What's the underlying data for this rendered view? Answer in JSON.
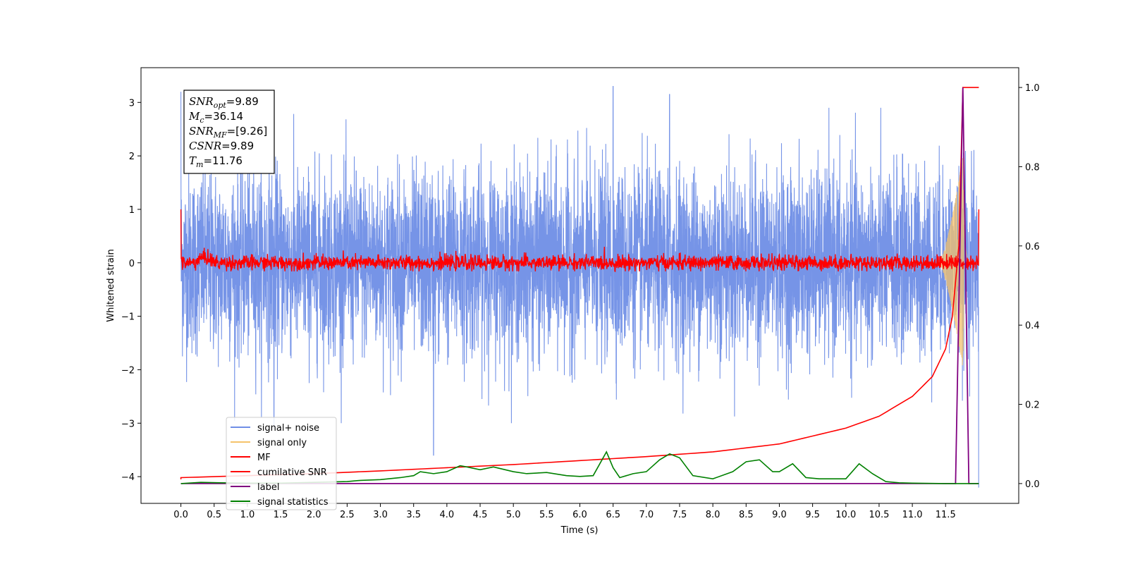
{
  "chart_data": {
    "type": "line",
    "title": "",
    "xlabel": "Time (s)",
    "ylabel": "Whitened strain",
    "xlim": [
      -0.6,
      12.6
    ],
    "ylim": [
      -4.5,
      3.65
    ],
    "y2lim": [
      -0.05,
      1.05
    ],
    "x_ticks": [
      0.0,
      0.5,
      1.0,
      1.5,
      2.0,
      2.5,
      3.0,
      3.5,
      4.0,
      4.5,
      5.0,
      5.5,
      6.0,
      6.5,
      7.0,
      7.5,
      8.0,
      8.5,
      9.0,
      9.5,
      10.0,
      10.5,
      11.0,
      11.5
    ],
    "x_tick_labels": [
      "0.0",
      "0.5",
      "1.0",
      "1.5",
      "2.0",
      "2.5",
      "3.0",
      "3.5",
      "4.0",
      "4.5",
      "5.0",
      "5.5",
      "6.0",
      "6.5",
      "7.0",
      "7.5",
      "8.0",
      "8.5",
      "9.0",
      "9.5",
      "10.0",
      "10.5",
      "11.0",
      "11.5"
    ],
    "y_ticks": [
      3,
      2,
      1,
      0,
      -1,
      -2,
      -3,
      -4
    ],
    "y_tick_labels": [
      "3",
      "2",
      "1",
      "0",
      "−1",
      "−2",
      "−3",
      "−4"
    ],
    "y2_ticks": [
      1.0,
      0.8,
      0.6,
      0.4,
      0.2,
      0.0
    ],
    "y2_tick_labels": [
      "1.0",
      "0.8",
      "0.6",
      "0.4",
      "0.2",
      "0.0"
    ],
    "grid": false,
    "legend_position": "bottom-left",
    "legend": [
      {
        "label": "signal+ noise",
        "color": "#6f8ee6"
      },
      {
        "label": "signal only",
        "color": "#f5c36b"
      },
      {
        "label": "MF",
        "color": "#ff0000"
      },
      {
        "label": "cumilative SNR",
        "color": "#ff0000"
      },
      {
        "label": "label",
        "color": "#800080"
      },
      {
        "label": "signal statistics",
        "color": "#008000"
      }
    ],
    "annotation": {
      "lines": [
        {
          "sym": "SNR",
          "sub": "opt",
          "value": "=9.89"
        },
        {
          "sym": "M",
          "sub": "c",
          "value": "=36.14"
        },
        {
          "sym": "SNR",
          "sub": "MF",
          "value": "=[9.26]"
        },
        {
          "sym": "CSNR",
          "sub": "",
          "value": "=9.89"
        },
        {
          "sym": "T",
          "sub": "m",
          "value": "=11.76"
        }
      ]
    },
    "series": [
      {
        "name": "signal+ noise",
        "axis": "left",
        "color": "#6f8ee6",
        "x_range": [
          0.0,
          12.0
        ],
        "amplitude_std": 0.85,
        "note_peaks": [
          [
            0.0,
            3.2
          ],
          [
            6.5,
            3.3
          ],
          [
            7.35,
            3.15
          ],
          [
            1.4,
            -3.1
          ],
          [
            3.8,
            -3.6
          ],
          [
            12.0,
            -4.2
          ]
        ]
      },
      {
        "name": "signal only",
        "axis": "left",
        "color": "#f5c36b",
        "x_range": [
          11.4,
          11.9
        ],
        "peak_amplitude": 2.0,
        "merger_time": 11.76
      },
      {
        "name": "MF",
        "axis": "left",
        "color": "#ff0000",
        "x_range": [
          0.0,
          12.0
        ],
        "baseline": 0.0,
        "noise_std": 0.07,
        "endpoints": [
          [
            0.0,
            1.0
          ],
          [
            12.0,
            1.0
          ]
        ]
      },
      {
        "name": "cumilative SNR",
        "axis": "right",
        "color": "#ff0000",
        "x": [
          0.0,
          1.0,
          2.0,
          3.0,
          4.0,
          5.0,
          6.0,
          7.0,
          8.0,
          9.0,
          10.0,
          10.5,
          11.0,
          11.3,
          11.5,
          11.6,
          11.7,
          11.76,
          12.0
        ],
        "y": [
          0.015,
          0.02,
          0.025,
          0.032,
          0.04,
          0.048,
          0.058,
          0.068,
          0.08,
          0.1,
          0.14,
          0.17,
          0.22,
          0.27,
          0.34,
          0.42,
          0.6,
          1.0,
          1.0
        ]
      },
      {
        "name": "label",
        "axis": "right",
        "color": "#800080",
        "x": [
          0.0,
          11.65,
          11.76,
          11.85,
          12.0
        ],
        "y": [
          0.0,
          0.0,
          1.0,
          0.0,
          0.0
        ]
      },
      {
        "name": "signal statistics",
        "axis": "right",
        "color": "#008000",
        "x": [
          0.0,
          0.3,
          0.6,
          1.0,
          1.5,
          2.0,
          2.5,
          2.7,
          3.0,
          3.3,
          3.5,
          3.6,
          3.8,
          4.0,
          4.2,
          4.3,
          4.5,
          4.7,
          4.8,
          5.0,
          5.2,
          5.5,
          5.8,
          6.0,
          6.2,
          6.3,
          6.4,
          6.5,
          6.6,
          6.8,
          7.0,
          7.2,
          7.35,
          7.5,
          7.7,
          8.0,
          8.3,
          8.5,
          8.7,
          8.9,
          9.0,
          9.2,
          9.4,
          9.6,
          9.8,
          10.0,
          10.2,
          10.4,
          10.6,
          10.8,
          11.0,
          11.5,
          12.0
        ],
        "y": [
          0.0,
          0.003,
          0.002,
          0.001,
          0.001,
          0.003,
          0.005,
          0.008,
          0.01,
          0.015,
          0.02,
          0.03,
          0.025,
          0.03,
          0.045,
          0.042,
          0.035,
          0.042,
          0.038,
          0.03,
          0.025,
          0.028,
          0.02,
          0.018,
          0.02,
          0.05,
          0.08,
          0.04,
          0.015,
          0.025,
          0.03,
          0.06,
          0.075,
          0.065,
          0.02,
          0.012,
          0.03,
          0.055,
          0.06,
          0.03,
          0.03,
          0.05,
          0.015,
          0.012,
          0.012,
          0.012,
          0.05,
          0.025,
          0.005,
          0.002,
          0.001,
          0.0,
          0.0
        ]
      }
    ]
  }
}
